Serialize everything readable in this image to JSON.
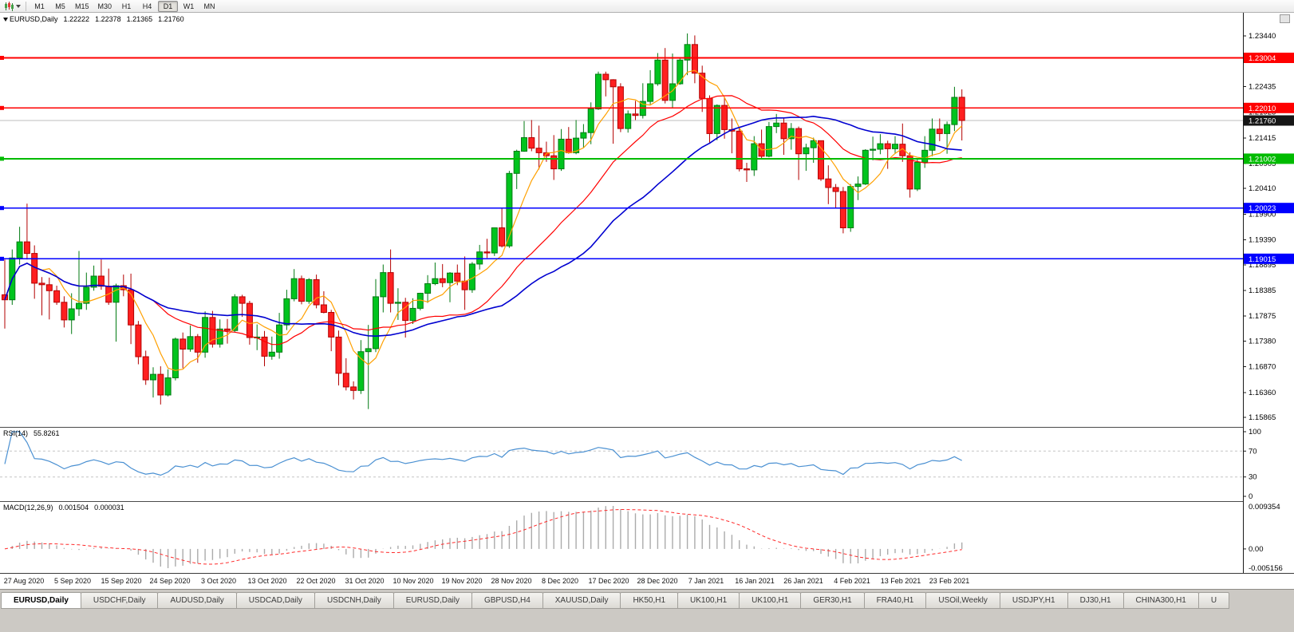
{
  "toolbar": {
    "timeframes": [
      "M1",
      "M5",
      "M15",
      "M30",
      "H1",
      "H4",
      "D1",
      "W1",
      "MN"
    ],
    "active_timeframe": "D1"
  },
  "chart": {
    "symbol_period": "EURUSD,Daily",
    "open": "1.22222",
    "high": "1.22378",
    "low": "1.21365",
    "close": "1.21760"
  },
  "rsi_panel": {
    "name": "RSI(14)",
    "value": "55.8261",
    "scale_labels": [
      "100",
      "70",
      "30",
      "0"
    ]
  },
  "macd_panel": {
    "name": "MACD(12,26,9)",
    "value1": "0.001504",
    "value2": "0.000031",
    "scale_max": "0.009354",
    "scale_zero": "0.00",
    "scale_min": "-0.005156"
  },
  "tabs": [
    "EURUSD,Daily",
    "USDCHF,Daily",
    "AUDUSD,Daily",
    "USDCAD,Daily",
    "USDCNH,Daily",
    "EURUSD,Daily",
    "GBPUSD,H4",
    "XAUUSD,Daily",
    "HK50,H1",
    "UK100,H1",
    "UK100,H1",
    "GER30,H1",
    "FRA40,H1",
    "USOil,Weekly",
    "USDJPY,H1",
    "DJ30,H1",
    "CHINA300,H1",
    "U"
  ],
  "active_tab_index": 0,
  "chart_data": {
    "type": "candlestick",
    "symbol": "EURUSD",
    "period": "Daily",
    "x_axis_labels": [
      "27 Aug 2020",
      "5 Sep 2020",
      "15 Sep 2020",
      "24 Sep 2020",
      "3 Oct 2020",
      "13 Oct 2020",
      "22 Oct 2020",
      "31 Oct 2020",
      "10 Nov 2020",
      "19 Nov 2020",
      "28 Nov 2020",
      "8 Dec 2020",
      "17 Dec 2020",
      "28 Dec 2020",
      "7 Jan 2021",
      "16 Jan 2021",
      "26 Jan 2021",
      "4 Feb 2021",
      "13 Feb 2021",
      "23 Feb 2021"
    ],
    "y_axis_ticks": [
      "1.23440",
      "1.22435",
      "1.21925",
      "1.21415",
      "1.20905",
      "1.20410",
      "1.19900",
      "1.19390",
      "1.18895",
      "1.18385",
      "1.17875",
      "1.17380",
      "1.16870",
      "1.16360",
      "1.15865"
    ],
    "price_axis_range": {
      "top": 1.239,
      "bottom": 1.1571
    },
    "current_price": {
      "value": 1.2176,
      "label": "1.21760"
    },
    "h_lines": [
      {
        "price": 1.23004,
        "label": "1.23004",
        "color": "#FF0000"
      },
      {
        "price": 1.2201,
        "label": "1.22010",
        "color": "#FF0000"
      },
      {
        "price": 1.21002,
        "label": "1.21002",
        "color": "#00BB00"
      },
      {
        "price": 1.20023,
        "label": "1.20023",
        "color": "#0000FF"
      },
      {
        "price": 1.19015,
        "label": "1.19015",
        "color": "#0000FF"
      }
    ],
    "candle_colors": {
      "bull_fill": "#00C41E",
      "bull_stroke": "#017A12",
      "bear_fill": "#FF2020",
      "bear_stroke": "#B30000"
    },
    "moving_averages": [
      {
        "name": "ma-fast-orange",
        "period": 6,
        "color": "#FFA000",
        "width": 1.2
      },
      {
        "name": "ma-mid-red",
        "period": 20,
        "color": "#FF0000",
        "width": 1.2
      },
      {
        "name": "ma-slow-blue",
        "period": 35,
        "color": "#0000D0",
        "width": 1.6
      }
    ],
    "rsi": {
      "period": 14,
      "color": "#4A90D2",
      "levels": [
        70,
        30
      ]
    },
    "macd": {
      "fast": 12,
      "slow": 26,
      "signal": 9,
      "histogram_color": "#ABABAB",
      "signal_color": "#FF2A2A"
    },
    "candles": [
      [
        1.183,
        1.19,
        1.1763,
        1.182
      ],
      [
        1.182,
        1.192,
        1.181,
        1.1903
      ],
      [
        1.1903,
        1.1965,
        1.189,
        1.1935
      ],
      [
        1.1935,
        1.2011,
        1.19,
        1.1912
      ],
      [
        1.1912,
        1.1928,
        1.1822,
        1.1853
      ],
      [
        1.1853,
        1.1865,
        1.1789,
        1.185
      ],
      [
        1.185,
        1.1864,
        1.1781,
        1.1838
      ],
      [
        1.1838,
        1.1848,
        1.181,
        1.1815
      ],
      [
        1.1815,
        1.1827,
        1.1765,
        1.178
      ],
      [
        1.178,
        1.1833,
        1.1752,
        1.1802
      ],
      [
        1.1802,
        1.1917,
        1.1788,
        1.1813
      ],
      [
        1.1813,
        1.1874,
        1.18,
        1.1845
      ],
      [
        1.1845,
        1.1888,
        1.1838,
        1.1867
      ],
      [
        1.1867,
        1.19,
        1.184,
        1.1847
      ],
      [
        1.1847,
        1.1882,
        1.181,
        1.1815
      ],
      [
        1.1815,
        1.1852,
        1.1737,
        1.1848
      ],
      [
        1.1848,
        1.187,
        1.1827,
        1.184
      ],
      [
        1.184,
        1.1872,
        1.1732,
        1.177
      ],
      [
        1.177,
        1.1778,
        1.1692,
        1.1707
      ],
      [
        1.1707,
        1.1719,
        1.1651,
        1.1661
      ],
      [
        1.1661,
        1.1686,
        1.1626,
        1.1672
      ],
      [
        1.1672,
        1.1688,
        1.1612,
        1.1631
      ],
      [
        1.1631,
        1.1682,
        1.1628,
        1.1665
      ],
      [
        1.1665,
        1.1745,
        1.166,
        1.1742
      ],
      [
        1.1742,
        1.1755,
        1.1684,
        1.1722
      ],
      [
        1.1722,
        1.1769,
        1.1717,
        1.1747
      ],
      [
        1.1747,
        1.1752,
        1.1695,
        1.1716
      ],
      [
        1.1716,
        1.1797,
        1.1705,
        1.1785
      ],
      [
        1.1785,
        1.1798,
        1.1725,
        1.1732
      ],
      [
        1.1732,
        1.1781,
        1.1725,
        1.1762
      ],
      [
        1.1762,
        1.1782,
        1.1733,
        1.1759
      ],
      [
        1.1759,
        1.1831,
        1.1755,
        1.1826
      ],
      [
        1.1826,
        1.183,
        1.1786,
        1.1813
      ],
      [
        1.1813,
        1.1818,
        1.1731,
        1.1745
      ],
      [
        1.1745,
        1.1771,
        1.172,
        1.1746
      ],
      [
        1.1746,
        1.1758,
        1.1688,
        1.1708
      ],
      [
        1.1708,
        1.1747,
        1.1701,
        1.1716
      ],
      [
        1.1716,
        1.1794,
        1.1703,
        1.177
      ],
      [
        1.177,
        1.184,
        1.176,
        1.1822
      ],
      [
        1.1822,
        1.1881,
        1.1817,
        1.1862
      ],
      [
        1.1862,
        1.1868,
        1.1811,
        1.1817
      ],
      [
        1.1817,
        1.1863,
        1.1812,
        1.186
      ],
      [
        1.186,
        1.187,
        1.1803,
        1.181
      ],
      [
        1.181,
        1.1837,
        1.1793,
        1.1795
      ],
      [
        1.1795,
        1.18,
        1.1718,
        1.1746
      ],
      [
        1.1746,
        1.1759,
        1.165,
        1.1674
      ],
      [
        1.1674,
        1.1704,
        1.164,
        1.1647
      ],
      [
        1.1647,
        1.1658,
        1.1622,
        1.164
      ],
      [
        1.164,
        1.174,
        1.1633,
        1.1717
      ],
      [
        1.1717,
        1.177,
        1.1603,
        1.1723
      ],
      [
        1.1723,
        1.1861,
        1.1716,
        1.1826
      ],
      [
        1.1826,
        1.189,
        1.1795,
        1.1874
      ],
      [
        1.1874,
        1.192,
        1.1795,
        1.1813
      ],
      [
        1.1813,
        1.1843,
        1.178,
        1.1815
      ],
      [
        1.1815,
        1.1824,
        1.1745,
        1.1779
      ],
      [
        1.1779,
        1.1823,
        1.1772,
        1.1803
      ],
      [
        1.1803,
        1.1834,
        1.1799,
        1.1833
      ],
      [
        1.1833,
        1.1869,
        1.1814,
        1.1852
      ],
      [
        1.1852,
        1.1894,
        1.1849,
        1.1862
      ],
      [
        1.1862,
        1.1891,
        1.1845,
        1.1854
      ],
      [
        1.1854,
        1.1875,
        1.1815,
        1.1873
      ],
      [
        1.1873,
        1.189,
        1.1849,
        1.1857
      ],
      [
        1.1857,
        1.1906,
        1.18,
        1.184
      ],
      [
        1.184,
        1.1895,
        1.1834,
        1.1891
      ],
      [
        1.1891,
        1.1929,
        1.188,
        1.1915
      ],
      [
        1.1915,
        1.1941,
        1.1903,
        1.1913
      ],
      [
        1.1913,
        1.1963,
        1.1907,
        1.1963
      ],
      [
        1.1963,
        1.2003,
        1.1924,
        1.1927
      ],
      [
        1.1927,
        1.2076,
        1.1923,
        1.2071
      ],
      [
        1.2071,
        1.2118,
        1.204,
        1.2115
      ],
      [
        1.2115,
        1.2175,
        1.2114,
        1.2142
      ],
      [
        1.2142,
        1.2177,
        1.2115,
        1.2121
      ],
      [
        1.2121,
        1.2166,
        1.2079,
        1.2112
      ],
      [
        1.2112,
        1.2134,
        1.2094,
        1.2106
      ],
      [
        1.2106,
        1.2147,
        1.2058,
        1.208
      ],
      [
        1.208,
        1.2159,
        1.2076,
        1.2139
      ],
      [
        1.2139,
        1.2163,
        1.211,
        1.2112
      ],
      [
        1.2112,
        1.2177,
        1.2109,
        1.2141
      ],
      [
        1.2141,
        1.2169,
        1.2122,
        1.2152
      ],
      [
        1.2152,
        1.2212,
        1.2129,
        1.2199
      ],
      [
        1.2199,
        1.2273,
        1.2197,
        1.2268
      ],
      [
        1.2268,
        1.2273,
        1.2224,
        1.2257
      ],
      [
        1.2257,
        1.2258,
        1.213,
        1.2243
      ],
      [
        1.2243,
        1.225,
        1.2153,
        1.216
      ],
      [
        1.216,
        1.2196,
        1.2152,
        1.2189
      ],
      [
        1.2189,
        1.2215,
        1.2177,
        1.2186
      ],
      [
        1.2186,
        1.225,
        1.218,
        1.2214
      ],
      [
        1.2214,
        1.2276,
        1.2208,
        1.2249
      ],
      [
        1.2249,
        1.231,
        1.2245,
        1.2296
      ],
      [
        1.2296,
        1.232,
        1.221,
        1.2216
      ],
      [
        1.2216,
        1.2309,
        1.22,
        1.2249
      ],
      [
        1.2249,
        1.2302,
        1.2247,
        1.2296
      ],
      [
        1.2296,
        1.2349,
        1.2266,
        1.2327
      ],
      [
        1.2327,
        1.2345,
        1.225,
        1.227
      ],
      [
        1.227,
        1.2285,
        1.2193,
        1.222
      ],
      [
        1.222,
        1.2226,
        1.2132,
        1.215
      ],
      [
        1.215,
        1.2208,
        1.2137,
        1.2206
      ],
      [
        1.2206,
        1.2223,
        1.214,
        1.2158
      ],
      [
        1.2158,
        1.218,
        1.2111,
        1.2155
      ],
      [
        1.2155,
        1.2163,
        1.2075,
        1.208
      ],
      [
        1.208,
        1.2092,
        1.2054,
        1.2078
      ],
      [
        1.2078,
        1.2145,
        1.2066,
        1.213
      ],
      [
        1.213,
        1.2158,
        1.2101,
        1.2105
      ],
      [
        1.2105,
        1.2173,
        1.2103,
        1.2164
      ],
      [
        1.2164,
        1.2189,
        1.2151,
        1.2171
      ],
      [
        1.2171,
        1.218,
        1.2108,
        1.214
      ],
      [
        1.214,
        1.2171,
        1.2118,
        1.216
      ],
      [
        1.216,
        1.2164,
        1.2058,
        1.211
      ],
      [
        1.211,
        1.213,
        1.2076,
        1.2122
      ],
      [
        1.2122,
        1.2142,
        1.2092,
        1.2136
      ],
      [
        1.2136,
        1.2136,
        1.2056,
        1.206
      ],
      [
        1.206,
        1.2087,
        1.201,
        1.2043
      ],
      [
        1.2043,
        1.205,
        1.2002,
        1.2035
      ],
      [
        1.2035,
        1.2044,
        1.1952,
        1.1963
      ],
      [
        1.1963,
        1.205,
        1.1955,
        1.2045
      ],
      [
        1.2045,
        1.2065,
        1.2018,
        1.205
      ],
      [
        1.205,
        1.2119,
        1.2048,
        1.2117
      ],
      [
        1.2117,
        1.2144,
        1.2097,
        1.2119
      ],
      [
        1.2119,
        1.2149,
        1.2109,
        1.213
      ],
      [
        1.213,
        1.2136,
        1.208,
        1.212
      ],
      [
        1.212,
        1.2145,
        1.211,
        1.2129
      ],
      [
        1.2129,
        1.217,
        1.2094,
        1.2106
      ],
      [
        1.2106,
        1.2113,
        1.2023,
        1.204
      ],
      [
        1.204,
        1.2101,
        1.2036,
        1.2093
      ],
      [
        1.2093,
        1.2145,
        1.2082,
        1.2117
      ],
      [
        1.2117,
        1.218,
        1.2105,
        1.2159
      ],
      [
        1.2159,
        1.218,
        1.2135,
        1.215
      ],
      [
        1.215,
        1.2174,
        1.211,
        1.2168
      ],
      [
        1.2168,
        1.2243,
        1.2155,
        1.2222
      ],
      [
        1.22222,
        1.22378,
        1.21365,
        1.2176
      ]
    ]
  }
}
